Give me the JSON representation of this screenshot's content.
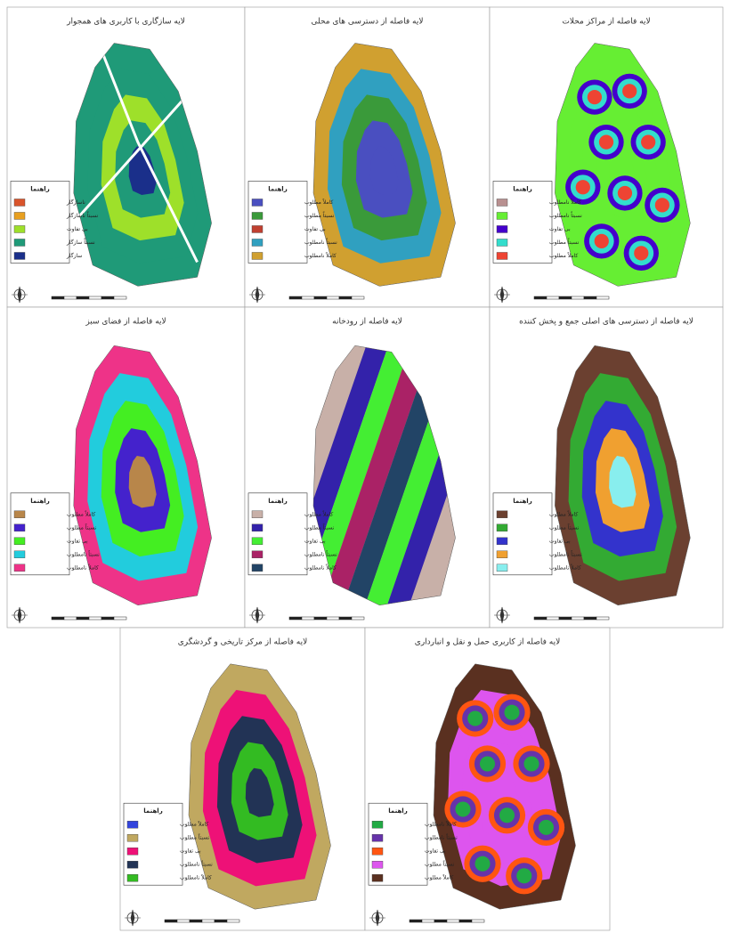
{
  "panels": [
    {
      "title": "لایه سازگاری با کاربری های همجوار",
      "legend_title": "راهنما",
      "legend": [
        {
          "label": "ناسازگار",
          "color": "#d9542b"
        },
        {
          "label": "نسبتاً ناسازگار",
          "color": "#e8a020"
        },
        {
          "label": "بی تفاوت",
          "color": "#9ee02a"
        },
        {
          "label": "نسبتاً سازگار",
          "color": "#1f9a78"
        },
        {
          "label": "سازگار",
          "color": "#1a2f8a"
        }
      ]
    },
    {
      "title": "لایه فاصله از دسترسی های محلی",
      "legend_title": "راهنما",
      "legend": [
        {
          "label": "کاملاً مطلوب",
          "color": "#4a4fc0"
        },
        {
          "label": "نسبتاً مطلوب",
          "color": "#3a9a3a"
        },
        {
          "label": "بی تفاوت",
          "color": "#c04030"
        },
        {
          "label": "نسبتاً نامطلوب",
          "color": "#30a0c0"
        },
        {
          "label": "کاملاً نامطلوب",
          "color": "#d0a030"
        }
      ]
    },
    {
      "title": "لایه فاصله از مراکز محلات",
      "legend_title": "راهنما",
      "legend": [
        {
          "label": "کاملاً نامطلوب",
          "color": "#b89090"
        },
        {
          "label": "نسبتاً نامطلوب",
          "color": "#66ee33"
        },
        {
          "label": "بی تفاوت",
          "color": "#4400cc"
        },
        {
          "label": "نسبتاً مطلوب",
          "color": "#33ddcc"
        },
        {
          "label": "کاملاً مطلوب",
          "color": "#ee4433"
        }
      ]
    },
    {
      "title": "لایه فاصله از فضای سبز",
      "legend_title": "راهنما",
      "legend": [
        {
          "label": "کاملاً مطلوب",
          "color": "#b8864a"
        },
        {
          "label": "نسبتاً مطلوب",
          "color": "#4422cc"
        },
        {
          "label": "بی تفاوت",
          "color": "#44ee22"
        },
        {
          "label": "نسبتاً نامطلوب",
          "color": "#22ccdd"
        },
        {
          "label": "کاملاً نامطلوب",
          "color": "#ee3388"
        }
      ]
    },
    {
      "title": "لایه فاصله از رودخانه",
      "legend_title": "راهنما",
      "legend": [
        {
          "label": "کاملاً مطلوب",
          "color": "#c8b0a8"
        },
        {
          "label": "نسبتاً مطلوب",
          "color": "#3322aa"
        },
        {
          "label": "بی تفاوت",
          "color": "#44ee33"
        },
        {
          "label": "نسبتاً نامطلوب",
          "color": "#aa2266"
        },
        {
          "label": "کاملاً نامطلوب",
          "color": "#224466"
        }
      ]
    },
    {
      "title": "لایه فاصله از دسترسی های اصلی جمع و پخش کننده",
      "legend_title": "راهنما",
      "legend": [
        {
          "label": "کاملاً مطلوب",
          "color": "#6b4030"
        },
        {
          "label": "نسبتاً مطلوب",
          "color": "#33aa33"
        },
        {
          "label": "بی تفاوت",
          "color": "#3333cc"
        },
        {
          "label": "نسبتاً نامطلوب",
          "color": "#f0a030"
        },
        {
          "label": "کاملاً نامطلوب",
          "color": "#88eeee"
        }
      ]
    },
    {
      "title": "لایه فاصله از مرکز تاریخی و گردشگری",
      "legend_title": "راهنما",
      "legend": [
        {
          "label": "کاملاً مطلوب",
          "color": "#3344dd"
        },
        {
          "label": "نسبتاً مطلوب",
          "color": "#c0a860"
        },
        {
          "label": "بی تفاوت",
          "color": "#ee1177"
        },
        {
          "label": "نسبتاً نامطلوب",
          "color": "#223355"
        },
        {
          "label": "کاملاً نامطلوب",
          "color": "#33bb22"
        }
      ]
    },
    {
      "title": "لایه فاصله از کاربری حمل و نقل و انبارداری",
      "legend_title": "راهنما",
      "legend": [
        {
          "label": "کاملاً نامطلوب",
          "color": "#22aa44"
        },
        {
          "label": "نسبتاً نامطلوب",
          "color": "#6633aa"
        },
        {
          "label": "بی تفاوت",
          "color": "#ff5511"
        },
        {
          "label": "نسبتاً مطلوب",
          "color": "#dd55ee"
        },
        {
          "label": "کاملاً مطلوب",
          "color": "#5a3020"
        }
      ]
    }
  ]
}
